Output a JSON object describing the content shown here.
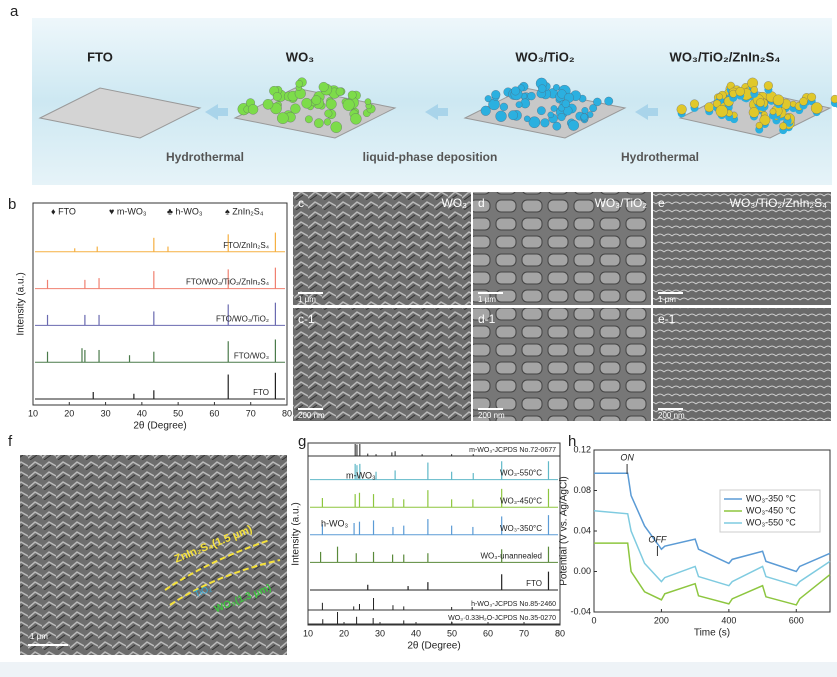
{
  "panel_a": {
    "letter": "a",
    "titles": [
      "FTO",
      "WO₃",
      "WO₃/TiO₂",
      "WO₃/TiO₂/ZnIn₂S₄"
    ],
    "steps": [
      "Hydrothermal",
      "liquid-phase deposition",
      "Hydrothermal"
    ]
  },
  "sem_panels": [
    {
      "letter": "c",
      "label": "WO₃",
      "scale": "1 μm"
    },
    {
      "letter": "d",
      "label": "WO₃/TiO₂",
      "scale": "1 μm"
    },
    {
      "letter": "e",
      "label": "WO₃/TiO₂/ZnIn₂S₄",
      "scale": "1 μm"
    },
    {
      "letter": "c-1",
      "label": null,
      "scale": "200 nm"
    },
    {
      "letter": "d-1",
      "label": null,
      "scale": "200 nm"
    },
    {
      "letter": "e-1",
      "label": null,
      "scale": "200 nm"
    }
  ],
  "panel_f": {
    "letter": "f",
    "layers": [
      "ZnIn₂S₄(1.5 μm)",
      "TiO₂",
      "WO₃(1.3 μm)"
    ],
    "scale": "1 μm"
  },
  "chart_data": [
    {
      "type": "stem",
      "label": "b",
      "xlabel": "2θ (Degree)",
      "ylabel": "Intensity (a.u.)",
      "xlim": [
        10,
        80
      ],
      "xticks": [
        10,
        20,
        30,
        40,
        50,
        60,
        70,
        80
      ],
      "legend": [
        "♦ FTO",
        "♥ m-WO₃",
        "♣ h-WO₃",
        "♠ ZnIn₂S₄"
      ],
      "series": [
        {
          "name": "FTO",
          "color": "#222222",
          "x": [
            26.6,
            37.8,
            43.3,
            63.8,
            76.8
          ],
          "values": [
            20,
            15,
            25,
            70,
            75
          ]
        },
        {
          "name": "FTO/WO₃",
          "color": "#4a7a4a",
          "x": [
            14.0,
            23.5,
            24.3,
            28.2,
            36.6,
            43.3,
            63.8,
            76.8
          ],
          "values": [
            30,
            40,
            35,
            35,
            20,
            30,
            60,
            65
          ]
        },
        {
          "name": "FTO/WO₃/TiO₂",
          "color": "#6a6ab0",
          "x": [
            14.0,
            24.3,
            28.2,
            43.3,
            63.8,
            76.8
          ],
          "values": [
            30,
            30,
            30,
            40,
            60,
            65
          ]
        },
        {
          "name": "FTO/WO₃/TiO₂/ZnIn₂S₄",
          "color": "#f08070",
          "x": [
            14.0,
            24.3,
            28.2,
            43.3,
            63.8,
            76.8
          ],
          "values": [
            25,
            25,
            30,
            50,
            55,
            60
          ]
        },
        {
          "name": "FTO/ZnIn₂S₄",
          "color": "#f5b042",
          "x": [
            21.5,
            27.7,
            43.3,
            47.2,
            63.8,
            76.8
          ],
          "values": [
            10,
            15,
            40,
            15,
            50,
            55
          ]
        }
      ]
    },
    {
      "type": "stem",
      "label": "g",
      "xlabel": "2θ (Degree)",
      "ylabel": "Intensity (a.u.)",
      "xlim": [
        10,
        80
      ],
      "xticks": [
        10,
        20,
        30,
        40,
        50,
        60,
        70,
        80
      ],
      "annotations": [
        "m-WO₃",
        "h-WO₃"
      ],
      "series": [
        {
          "name": "FTO",
          "color": "#222222",
          "x": [
            26.6,
            37.8,
            43.3,
            63.8,
            76.8
          ],
          "values": [
            20,
            15,
            30,
            60,
            70
          ]
        },
        {
          "name": "WO₃-unannealed",
          "color": "#5a8a3a",
          "x": [
            13.5,
            18.2,
            23.4,
            28.2,
            33.5,
            36.6,
            43.3,
            63.8,
            76.8
          ],
          "values": [
            40,
            60,
            35,
            40,
            30,
            30,
            35,
            50,
            60
          ]
        },
        {
          "name": "WO₃-350°C",
          "color": "#5b9bd5",
          "x": [
            14.0,
            22.8,
            24.3,
            28.2,
            33.6,
            36.6,
            43.3,
            49.9,
            55.8,
            63.8,
            76.8
          ],
          "values": [
            40,
            45,
            50,
            55,
            30,
            35,
            60,
            35,
            30,
            70,
            75
          ]
        },
        {
          "name": "WO₃-450°C",
          "color": "#8dc63f",
          "x": [
            14.0,
            23.1,
            24.3,
            28.2,
            33.6,
            36.6,
            43.3,
            49.9,
            55.8,
            63.8,
            76.8
          ],
          "values": [
            35,
            50,
            55,
            50,
            35,
            30,
            65,
            30,
            30,
            70,
            70
          ]
        },
        {
          "name": "WO₃-550°C",
          "color": "#60b8c8",
          "x": [
            23.1,
            23.6,
            24.4,
            28.9,
            34.2,
            43.3,
            49.9,
            55.9,
            63.8,
            76.8
          ],
          "values": [
            60,
            55,
            60,
            30,
            35,
            65,
            30,
            25,
            70,
            70
          ]
        }
      ],
      "references": [
        {
          "name": "m-WO₃-JCPDS No.72-0677",
          "x": [
            23.1,
            23.6,
            24.4,
            26.6,
            28.9,
            33.3,
            34.2,
            41.7,
            49.9,
            55.9
          ],
          "values": [
            100,
            95,
            100,
            20,
            15,
            30,
            40,
            15,
            15,
            15
          ]
        },
        {
          "name": "h-WO₃-JCPDS No.85-2460",
          "x": [
            14.0,
            22.7,
            24.3,
            28.2,
            33.6,
            36.6,
            49.9,
            55.6
          ],
          "values": [
            60,
            30,
            50,
            100,
            40,
            30,
            25,
            25
          ]
        },
        {
          "name": "WO₃·0.33H₂O-JCPDS No.35-0270",
          "x": [
            14.1,
            18.2,
            23.5,
            28.1,
            36.6,
            49.9
          ],
          "values": [
            40,
            100,
            60,
            50,
            30,
            20
          ]
        }
      ]
    },
    {
      "type": "line",
      "label": "h",
      "xlabel": "Time (s)",
      "ylabel": "Potential (V vs. Ag/AgCl)",
      "xlim": [
        0,
        700
      ],
      "xticks": [
        0,
        200,
        400,
        600
      ],
      "ylim": [
        -0.04,
        0.12
      ],
      "yticks": [
        -0.04,
        {
          "value": 0,
          "label": "0.00"
        },
        0.04,
        0.08,
        0.12
      ],
      "legend_position": "upper right",
      "annotations": [
        "ON",
        "OFF"
      ],
      "x": [
        0,
        100,
        110,
        150,
        200,
        210,
        300,
        310,
        400,
        410,
        500,
        510,
        600,
        610,
        700
      ],
      "series": [
        {
          "name": "WO₃-350 °C",
          "color": "#5b9bd5",
          "values": [
            0.097,
            0.097,
            0.075,
            0.045,
            0.022,
            0.025,
            0.032,
            0.022,
            0.008,
            0.012,
            0.02,
            0.01,
            0.0,
            0.005,
            0.018
          ]
        },
        {
          "name": "WO₃-450 °C",
          "color": "#8dc63f",
          "values": [
            0.028,
            0.028,
            0.0,
            -0.02,
            -0.028,
            -0.022,
            -0.012,
            -0.024,
            -0.032,
            -0.027,
            -0.014,
            -0.025,
            -0.033,
            -0.027,
            -0.003
          ]
        },
        {
          "name": "WO₃-550 °C",
          "color": "#7fcbe0",
          "values": [
            0.06,
            0.057,
            0.04,
            0.008,
            -0.01,
            -0.006,
            0.005,
            -0.005,
            -0.014,
            -0.01,
            0.005,
            -0.005,
            -0.014,
            -0.01,
            0.01
          ]
        }
      ]
    }
  ]
}
